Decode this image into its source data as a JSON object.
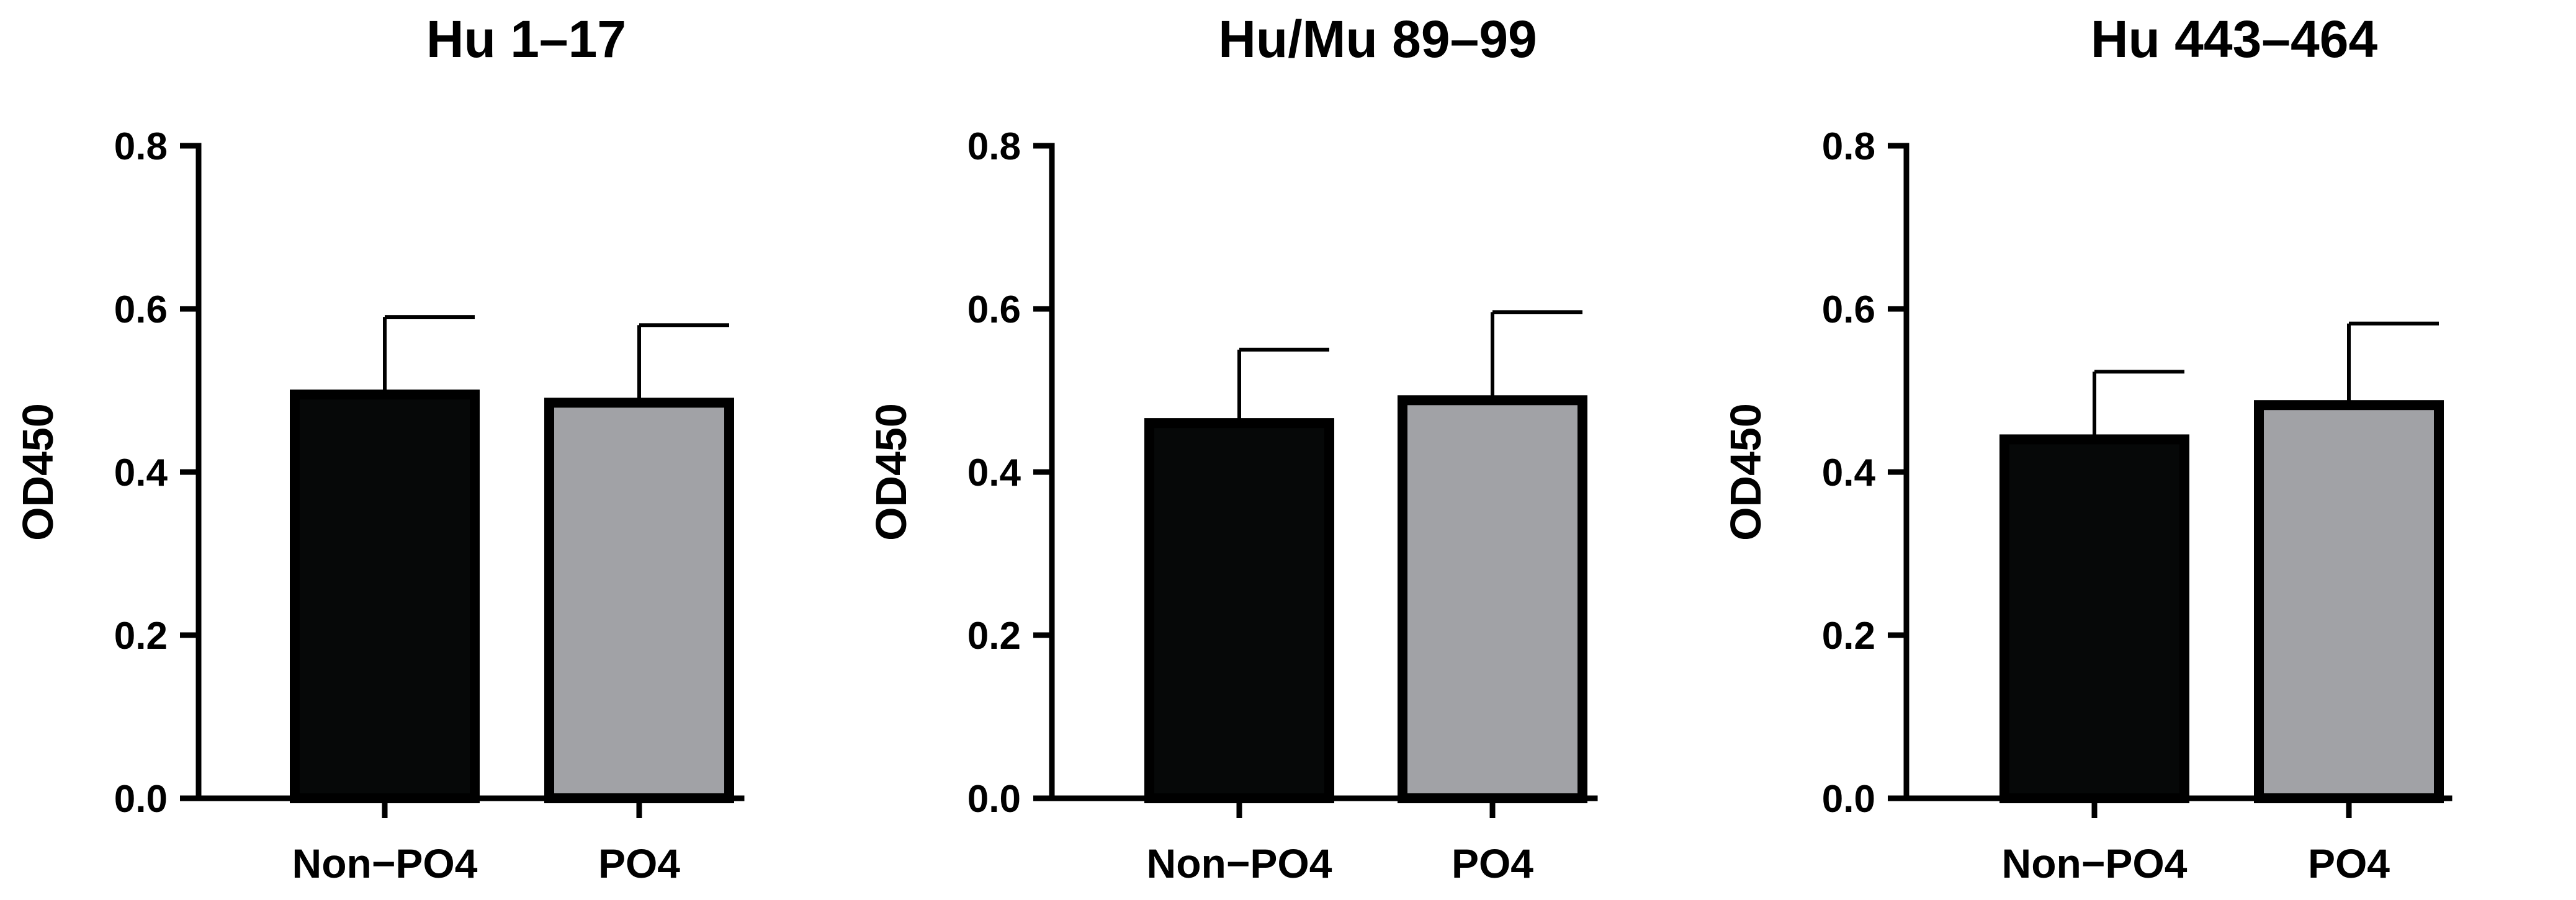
{
  "chart_data": [
    {
      "type": "bar",
      "title": "Hu 1–17",
      "ylabel": "OD450",
      "xlabel": "",
      "categories": [
        "Non−PO4",
        "PO4"
      ],
      "values": [
        0.495,
        0.485
      ],
      "errors": [
        0.095,
        0.095
      ],
      "colors": [
        "#060808",
        "#a1a2a6"
      ],
      "ylim": [
        0,
        0.8
      ],
      "yticks": [
        0.0,
        0.2,
        0.4,
        0.6,
        0.8
      ],
      "ytick_labels": [
        "0.0",
        "0.2",
        "0.4",
        "0.6",
        "0.8"
      ],
      "grid": false,
      "legend": "none"
    },
    {
      "type": "bar",
      "title": "Hu/Mu 89–99",
      "ylabel": "OD450",
      "xlabel": "",
      "categories": [
        "Non−PO4",
        "PO4"
      ],
      "values": [
        0.46,
        0.488
      ],
      "errors": [
        0.09,
        0.108
      ],
      "colors": [
        "#060808",
        "#a1a2a6"
      ],
      "ylim": [
        0,
        0.8
      ],
      "yticks": [
        0.0,
        0.2,
        0.4,
        0.6,
        0.8
      ],
      "ytick_labels": [
        "0.0",
        "0.2",
        "0.4",
        "0.6",
        "0.8"
      ],
      "grid": false,
      "legend": "none"
    },
    {
      "type": "bar",
      "title": "Hu 443–464",
      "ylabel": "OD450",
      "xlabel": "",
      "categories": [
        "Non−PO4",
        "PO4"
      ],
      "values": [
        0.44,
        0.482
      ],
      "errors": [
        0.083,
        0.1
      ],
      "colors": [
        "#060808",
        "#a1a2a6"
      ],
      "ylim": [
        0,
        0.8
      ],
      "yticks": [
        0.0,
        0.2,
        0.4,
        0.6,
        0.8
      ],
      "ytick_labels": [
        "0.0",
        "0.2",
        "0.4",
        "0.6",
        "0.8"
      ],
      "grid": false,
      "legend": "none"
    }
  ]
}
